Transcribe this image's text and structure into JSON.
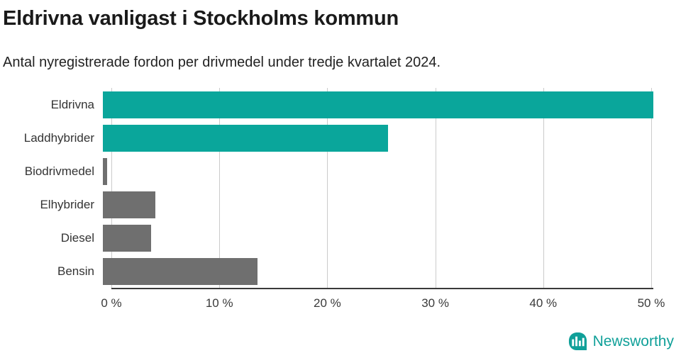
{
  "title": "Eldrivna vanligast i Stockholms kommun",
  "subtitle": "Antal nyregistrerade fordon per drivmedel under tredje kvartalet 2024.",
  "chart_data": {
    "type": "bar",
    "orientation": "horizontal",
    "categories": [
      "Eldrivna",
      "Laddhybrider",
      "Biodrivmedel",
      "Elhybrider",
      "Diesel",
      "Bensin"
    ],
    "values": [
      50.2,
      26,
      0.4,
      4.8,
      4.4,
      14.1
    ],
    "unit": "%",
    "bar_colors": [
      "#0aa69b",
      "#0aa69b",
      "#6f6f6f",
      "#6f6f6f",
      "#6f6f6f",
      "#6f6f6f"
    ],
    "xlabel": "",
    "ylabel": "",
    "xlim": [
      0,
      50.2
    ],
    "x_ticks": [
      0,
      10,
      20,
      30,
      40,
      50
    ],
    "x_tick_labels": [
      "0 %",
      "10 %",
      "20 %",
      "30 %",
      "40 %",
      "50 %"
    ],
    "grid": true,
    "legend": false
  },
  "branding": {
    "name": "Newsworthy"
  },
  "colors": {
    "teal": "#0aa69b",
    "gray": "#6f6f6f",
    "gridline": "#cbcbcb",
    "axis": "#3a3a3a"
  }
}
